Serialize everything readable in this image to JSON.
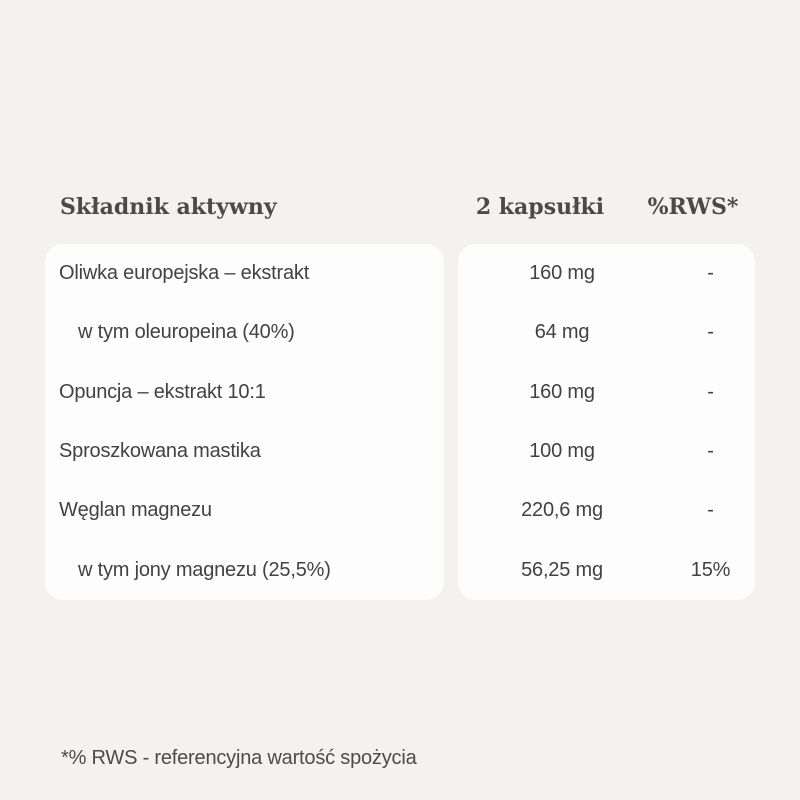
{
  "colors": {
    "background": "#f4f2ef",
    "card_background": "#fdfdfd",
    "header_text": "#4b4a48",
    "body_text": "#424242",
    "footnote_text": "#4b4b4b"
  },
  "table": {
    "headers": {
      "ingredient": "Składnik aktywny",
      "amount": "2 kapsułki",
      "rws": "%RWS*"
    },
    "rows": [
      {
        "name": "Oliwka europejska – ekstrakt",
        "indent": false,
        "amount": "160 mg",
        "rws": "-"
      },
      {
        "name": "w tym oleuropeina (40%)",
        "indent": true,
        "amount": "64 mg",
        "rws": "-"
      },
      {
        "name": "Opuncja – ekstrakt 10:1",
        "indent": false,
        "amount": "160 mg",
        "rws": "-"
      },
      {
        "name": "Sproszkowana mastika",
        "indent": false,
        "amount": "100 mg",
        "rws": "-"
      },
      {
        "name": "Węglan magnezu",
        "indent": false,
        "amount": "220,6 mg",
        "rws": "-"
      },
      {
        "name": "w tym jony magnezu (25,5%)",
        "indent": true,
        "amount": "56,25 mg",
        "rws": "15%"
      }
    ]
  },
  "footnote": "*% RWS - referencyjna wartość spożycia"
}
